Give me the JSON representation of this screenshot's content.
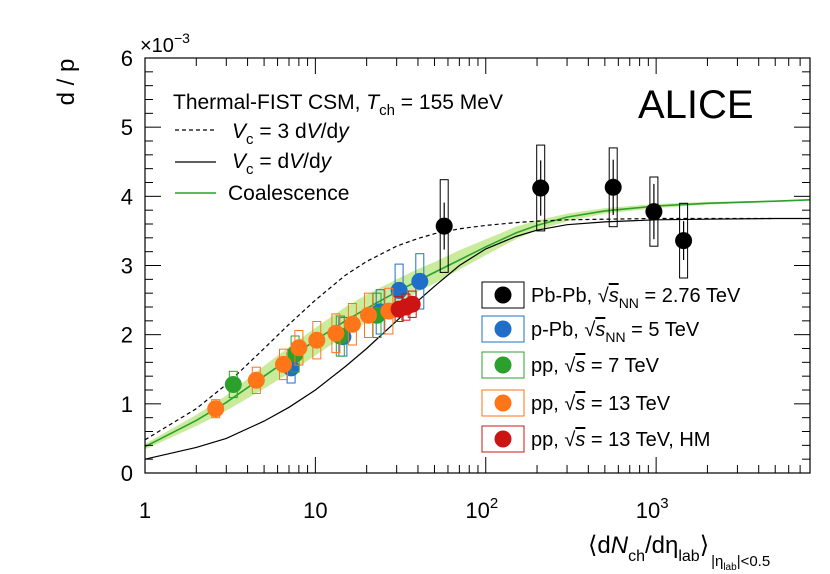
{
  "chart_data": {
    "type": "scatter",
    "x_scale": "log",
    "xlim": [
      1,
      8000
    ],
    "ylim": [
      0,
      6
    ],
    "y_multiplier": "×10",
    "y_multiplier_exp": "−3",
    "ylabel": "d / p",
    "xlabel": {
      "open": "⟨d",
      "N": "N",
      "sub_ch": "ch",
      "mid": "/dη",
      "sub_lab": "lab",
      "close": "⟩",
      "range_pre": "|η",
      "range_sub": "lab",
      "range_post": "|<0.5"
    },
    "x_ticks": [
      {
        "value": 1,
        "label": "1"
      },
      {
        "value": 10,
        "label": "10"
      },
      {
        "value": 100,
        "label": "10",
        "sup": "2"
      },
      {
        "value": 1000,
        "label": "10",
        "sup": "3"
      }
    ],
    "y_ticks": [
      {
        "value": 0,
        "label": "0"
      },
      {
        "value": 1,
        "label": "1"
      },
      {
        "value": 2,
        "label": "2"
      },
      {
        "value": 3,
        "label": "3"
      },
      {
        "value": 4,
        "label": "4"
      },
      {
        "value": 5,
        "label": "5"
      },
      {
        "value": 6,
        "label": "6"
      }
    ],
    "experiment": "ALICE",
    "model_header": {
      "text": "Thermal-FIST CSM, ",
      "T": "T",
      "sub": "ch",
      "rest": " = 155 MeV"
    },
    "model_legend": [
      {
        "name": "vc3",
        "style": "dashed",
        "color": "#000000",
        "V": "V",
        "sub": "c",
        "rest": " = 3 d",
        "V2": "V",
        "mid": "/d",
        "y": "y"
      },
      {
        "name": "vc1",
        "style": "solid",
        "color": "#000000",
        "V": "V",
        "sub": "c",
        "rest": " = d",
        "V2": "V",
        "mid": "/d",
        "y": "y"
      },
      {
        "name": "coal",
        "style": "solid",
        "color": "#2ca02c",
        "label": "Coalescence"
      }
    ],
    "data_legend": [
      {
        "label": "Pb-Pb, ",
        "sqrt": "√",
        "s": "s",
        "sub": "NN",
        "rest": " = 2.76 TeV"
      },
      {
        "label": "p-Pb, ",
        "sqrt": "√",
        "s": "s",
        "sub": "NN",
        "rest": " = 5 TeV"
      },
      {
        "label": "pp, ",
        "sqrt": "√",
        "s": "s",
        "sub": "",
        "rest": " = 7 TeV"
      },
      {
        "label": "pp, ",
        "sqrt": "√",
        "s": "s",
        "sub": "",
        "rest": " = 13 TeV"
      },
      {
        "label": "pp, ",
        "sqrt": "√",
        "s": "s",
        "sub": "",
        "rest": " = 13 TeV, HM"
      }
    ],
    "series": [
      {
        "name": "Pb-Pb 2.76 TeV",
        "color": "#000000",
        "box": "#000000",
        "points": [
          {
            "x": 57,
            "y": 3.57,
            "stat": 0.34,
            "sys": 0.67
          },
          {
            "x": 210,
            "y": 4.12,
            "stat": 0.4,
            "sys": 0.62
          },
          {
            "x": 560,
            "y": 4.13,
            "stat": 0.4,
            "sys": 0.57
          },
          {
            "x": 970,
            "y": 3.78,
            "stat": 0.4,
            "sys": 0.5
          },
          {
            "x": 1450,
            "y": 3.36,
            "stat": 0.28,
            "sys": 0.54
          }
        ]
      },
      {
        "name": "p-Pb 5.02 TeV",
        "color": "#1f6fc9",
        "box": "#1f6fc9",
        "points": [
          {
            "x": 7.2,
            "y": 1.52,
            "stat": 0.08,
            "sys": 0.22
          },
          {
            "x": 14.5,
            "y": 1.97,
            "stat": 0.08,
            "sys": 0.28
          },
          {
            "x": 24,
            "y": 2.33,
            "stat": 0.08,
            "sys": 0.32
          },
          {
            "x": 31,
            "y": 2.64,
            "stat": 0.09,
            "sys": 0.38
          },
          {
            "x": 41,
            "y": 2.77,
            "stat": 0.09,
            "sys": 0.4
          }
        ]
      },
      {
        "name": "pp 7 TeV",
        "color": "#2ca02c",
        "box": "#2ca02c",
        "points": [
          {
            "x": 3.3,
            "y": 1.28,
            "stat": 0.06,
            "sys": 0.19
          },
          {
            "x": 7.6,
            "y": 1.72,
            "stat": 0.06,
            "sys": 0.26
          },
          {
            "x": 14,
            "y": 1.98,
            "stat": 0.06,
            "sys": 0.29
          },
          {
            "x": 23,
            "y": 2.28,
            "stat": 0.07,
            "sys": 0.32
          }
        ]
      },
      {
        "name": "pp 13 TeV",
        "color": "#ff7518",
        "box": "#ff7518",
        "points": [
          {
            "x": 2.6,
            "y": 0.93,
            "stat": 0.05,
            "sys": 0.13
          },
          {
            "x": 4.5,
            "y": 1.34,
            "stat": 0.05,
            "sys": 0.19
          },
          {
            "x": 6.5,
            "y": 1.57,
            "stat": 0.05,
            "sys": 0.22
          },
          {
            "x": 8.0,
            "y": 1.81,
            "stat": 0.05,
            "sys": 0.25
          },
          {
            "x": 10.2,
            "y": 1.92,
            "stat": 0.05,
            "sys": 0.27
          },
          {
            "x": 13.2,
            "y": 2.02,
            "stat": 0.06,
            "sys": 0.28
          },
          {
            "x": 16.5,
            "y": 2.15,
            "stat": 0.06,
            "sys": 0.3
          },
          {
            "x": 20.5,
            "y": 2.28,
            "stat": 0.06,
            "sys": 0.32
          },
          {
            "x": 27,
            "y": 2.34,
            "stat": 0.06,
            "sys": 0.33
          }
        ]
      },
      {
        "name": "pp 13 TeV HM",
        "color": "#cc1414",
        "box": "#cc1414",
        "points": [
          {
            "x": 31,
            "y": 2.37,
            "stat": 0.05,
            "sys": 0.18
          },
          {
            "x": 34,
            "y": 2.4,
            "stat": 0.05,
            "sys": 0.19
          },
          {
            "x": 37,
            "y": 2.44,
            "stat": 0.05,
            "sys": 0.19
          }
        ]
      }
    ],
    "curves": {
      "vc3": {
        "x": [
          1,
          2,
          3,
          5,
          7,
          10,
          15,
          20,
          30,
          40,
          50,
          70,
          100,
          150,
          200,
          300,
          500,
          1000,
          2000,
          5000
        ],
        "y": [
          0.48,
          0.93,
          1.28,
          1.8,
          2.15,
          2.5,
          2.86,
          3.06,
          3.28,
          3.39,
          3.46,
          3.53,
          3.58,
          3.62,
          3.64,
          3.66,
          3.67,
          3.68,
          3.68,
          3.68
        ]
      },
      "vc1": {
        "x": [
          1,
          2,
          3,
          5,
          7,
          10,
          15,
          20,
          30,
          40,
          50,
          70,
          100,
          150,
          200,
          300,
          500,
          1000,
          2000,
          5000,
          8000
        ],
        "y": [
          0.2,
          0.37,
          0.5,
          0.75,
          0.95,
          1.2,
          1.54,
          1.8,
          2.2,
          2.49,
          2.7,
          3.0,
          3.24,
          3.42,
          3.51,
          3.59,
          3.63,
          3.66,
          3.67,
          3.68,
          3.68
        ]
      },
      "coal": {
        "x": [
          1,
          2,
          3,
          5,
          7,
          10,
          15,
          20,
          30,
          40,
          50,
          70,
          100,
          150,
          200,
          300,
          500,
          1000,
          2000,
          5000,
          8000
        ],
        "y": [
          0.38,
          0.76,
          1.02,
          1.4,
          1.65,
          1.92,
          2.2,
          2.38,
          2.62,
          2.78,
          2.9,
          3.08,
          3.27,
          3.47,
          3.58,
          3.7,
          3.79,
          3.86,
          3.9,
          3.93,
          3.95
        ],
        "band_low": [
          0.34,
          0.68,
          0.9,
          1.22,
          1.44,
          1.7,
          1.99,
          2.18,
          2.44,
          2.62,
          2.74,
          2.94,
          3.15,
          3.38,
          3.51,
          3.64,
          3.75,
          3.83,
          3.88,
          3.92,
          3.94
        ],
        "band_high": [
          0.42,
          0.84,
          1.12,
          1.55,
          1.82,
          2.1,
          2.4,
          2.58,
          2.8,
          2.95,
          3.05,
          3.22,
          3.38,
          3.56,
          3.65,
          3.75,
          3.83,
          3.89,
          3.92,
          3.94,
          3.96
        ]
      }
    }
  }
}
